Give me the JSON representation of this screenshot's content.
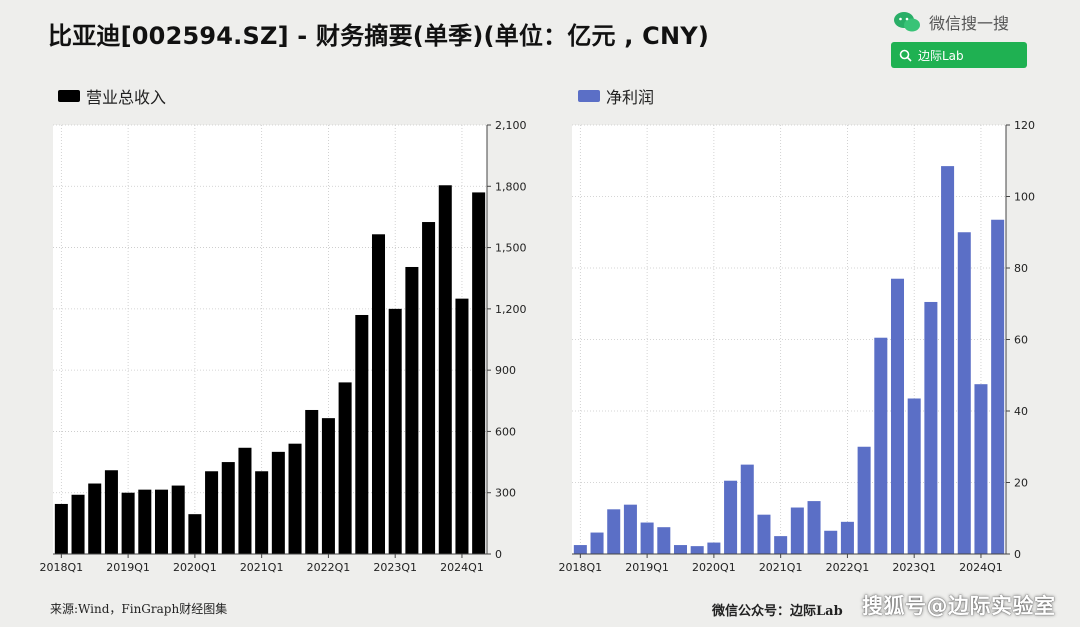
{
  "header": {
    "title": "比亚迪[002594.SZ] - 财务摘要(单季)(单位：亿元 , CNY)",
    "brand_text": "微信搜一搜",
    "search_label": "边际Lab",
    "brand_icon": "wechat-icon",
    "search_icon": "search-icon"
  },
  "colors": {
    "revenue": "#000000",
    "profit": "#5b6fc6",
    "search_bg": "#1fb152"
  },
  "chart_data": [
    {
      "type": "bar",
      "legend": "营业总收入",
      "categories": [
        "2018Q1",
        "2018Q2",
        "2018Q3",
        "2018Q4",
        "2019Q1",
        "2019Q2",
        "2019Q3",
        "2019Q4",
        "2020Q1",
        "2020Q2",
        "2020Q3",
        "2020Q4",
        "2021Q1",
        "2021Q2",
        "2021Q3",
        "2021Q4",
        "2022Q1",
        "2022Q2",
        "2022Q3",
        "2022Q4",
        "2023Q1",
        "2023Q2",
        "2023Q3",
        "2023Q4",
        "2024Q1",
        "2024Q2"
      ],
      "values": [
        245,
        290,
        345,
        410,
        300,
        315,
        315,
        335,
        195,
        405,
        450,
        520,
        405,
        500,
        540,
        705,
        665,
        840,
        1170,
        1565,
        1200,
        1405,
        1625,
        1805,
        1250,
        1770
      ],
      "xticks": [
        "2018Q1",
        "2019Q1",
        "2020Q1",
        "2021Q1",
        "2022Q1",
        "2023Q1",
        "2024Q1"
      ],
      "yticks": [
        "0",
        "300",
        "600",
        "900",
        "1,200",
        "1,500",
        "1,800",
        "2,100"
      ],
      "ylim": [
        0,
        2100
      ],
      "y_axis_side": "right",
      "grid": true
    },
    {
      "type": "bar",
      "legend": "净利润",
      "categories": [
        "2018Q1",
        "2018Q2",
        "2018Q3",
        "2018Q4",
        "2019Q1",
        "2019Q2",
        "2019Q3",
        "2019Q4",
        "2020Q1",
        "2020Q2",
        "2020Q3",
        "2020Q4",
        "2021Q1",
        "2021Q2",
        "2021Q3",
        "2021Q4",
        "2022Q1",
        "2022Q2",
        "2022Q3",
        "2022Q4",
        "2023Q1",
        "2023Q2",
        "2023Q3",
        "2023Q4",
        "2024Q1",
        "2024Q2"
      ],
      "values": [
        2.5,
        6,
        12.5,
        13.8,
        8.8,
        7.5,
        2.5,
        2.2,
        3.2,
        20.5,
        25,
        11,
        5,
        13,
        14.8,
        6.5,
        9,
        30,
        60.5,
        77,
        43.5,
        70.5,
        108.5,
        90,
        47.5,
        93.5
      ],
      "xticks": [
        "2018Q1",
        "2019Q1",
        "2020Q1",
        "2021Q1",
        "2022Q1",
        "2023Q1",
        "2024Q1"
      ],
      "yticks": [
        "0",
        "20",
        "40",
        "60",
        "80",
        "100",
        "120"
      ],
      "ylim": [
        0,
        120
      ],
      "y_axis_side": "right",
      "grid": true
    }
  ],
  "footer": {
    "source": "来源:Wind，FinGraph财经图集",
    "account": "微信公众号：边际Lab",
    "watermark": "搜狐号@边际实验室"
  }
}
